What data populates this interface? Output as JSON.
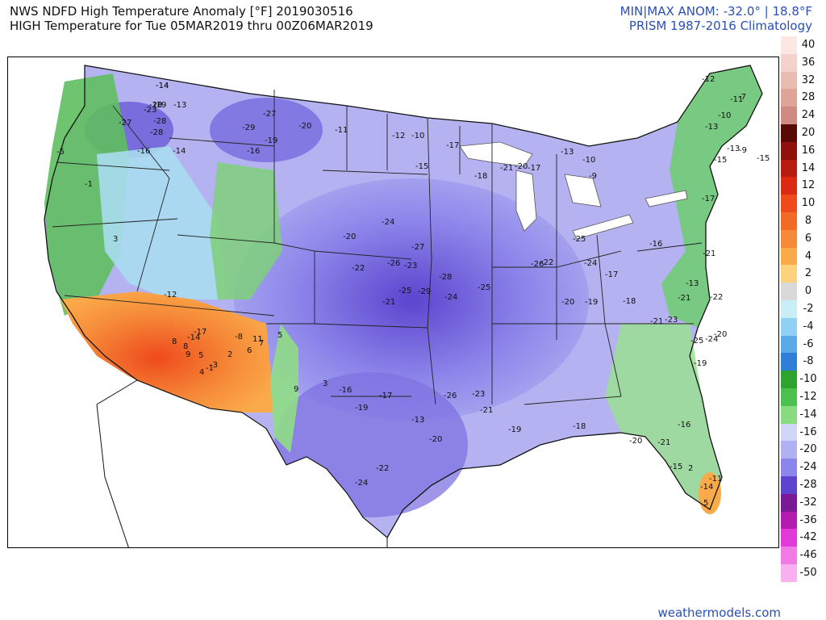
{
  "header": {
    "title_line1": "NWS NDFD High Temperature Anomaly [°F] 2019030516",
    "title_line2": "HIGH Temperature for Tue 05MAR2019 thru 00Z06MAR2019",
    "minmax": "MIN|MAX ANOM: -32.0° | 18.8°F",
    "climatology": "PRISM 1987-2016 Climatology"
  },
  "legend": {
    "labels": [
      "40",
      "36",
      "32",
      "28",
      "24",
      "20",
      "16",
      "14",
      "12",
      "10",
      "8",
      "6",
      "4",
      "2",
      "0",
      "-2",
      "-4",
      "-6",
      "-8",
      "-10",
      "-12",
      "-14",
      "-16",
      "-20",
      "-24",
      "-28",
      "-32",
      "-36",
      "-42",
      "-46",
      "-50"
    ],
    "colors": [
      "#fbe8e4",
      "#f3d2cb",
      "#e9bcb2",
      "#dea49a",
      "#cf8b82",
      "#5a0a06",
      "#8e120a",
      "#b81c0e",
      "#dc2a12",
      "#ee4a1c",
      "#f26a26",
      "#f68a38",
      "#fbaa4a",
      "#fcd27c",
      "#d9d9d9",
      "#c8eef6",
      "#8fd0f4",
      "#5aaae8",
      "#2f7fd8",
      "#2ea32e",
      "#4cc04c",
      "#86dc7e",
      "#cfd6f6",
      "#b0b0f2",
      "#8d86ea",
      "#5c44cf",
      "#7a1a96",
      "#b41cb0",
      "#e23ad8",
      "#f07ae6",
      "#f8b0f0"
    ]
  },
  "map_values": [
    "-14",
    "-20",
    "-19",
    "-13",
    "-23",
    "-28",
    "-27",
    "-28",
    "-16",
    "-14",
    "-27",
    "-29",
    "-20",
    "-19",
    "-16",
    "-11",
    "-12",
    "-10",
    "-15",
    "-17",
    "-18",
    "-21",
    "-20",
    "-17",
    "-13",
    "-10",
    "-9",
    "-5",
    "-1",
    "3",
    "8",
    "5",
    "4",
    "2",
    "-1",
    "-3",
    "-12",
    "-20",
    "-24",
    "-26",
    "-27",
    "-29",
    "-25",
    "-28",
    "-22",
    "-23",
    "-21",
    "-24",
    "-25",
    "-26",
    "-22",
    "-25",
    "-24",
    "-20",
    "-19",
    "-17",
    "-16",
    "-13",
    "-18",
    "-21",
    "-23",
    "-21",
    "-25",
    "-24",
    "-22",
    "-19",
    "-20",
    "-21",
    "-17",
    "-15",
    "-13",
    "-9",
    "-13",
    "-11",
    "-7",
    "-10",
    "-12",
    "-15",
    "-17",
    "-14",
    "-8",
    "8",
    "9",
    "6",
    "11",
    "7",
    "5",
    "9",
    "3",
    "-16",
    "-19",
    "-17",
    "-13",
    "-20",
    "-22",
    "-24",
    "-26",
    "-23",
    "-21",
    "-19",
    "-18",
    "-20",
    "-21",
    "-16",
    "-15",
    "-14",
    "-11",
    "5",
    "2",
    "-14",
    "-13"
  ],
  "credit": "weathermodels.com"
}
